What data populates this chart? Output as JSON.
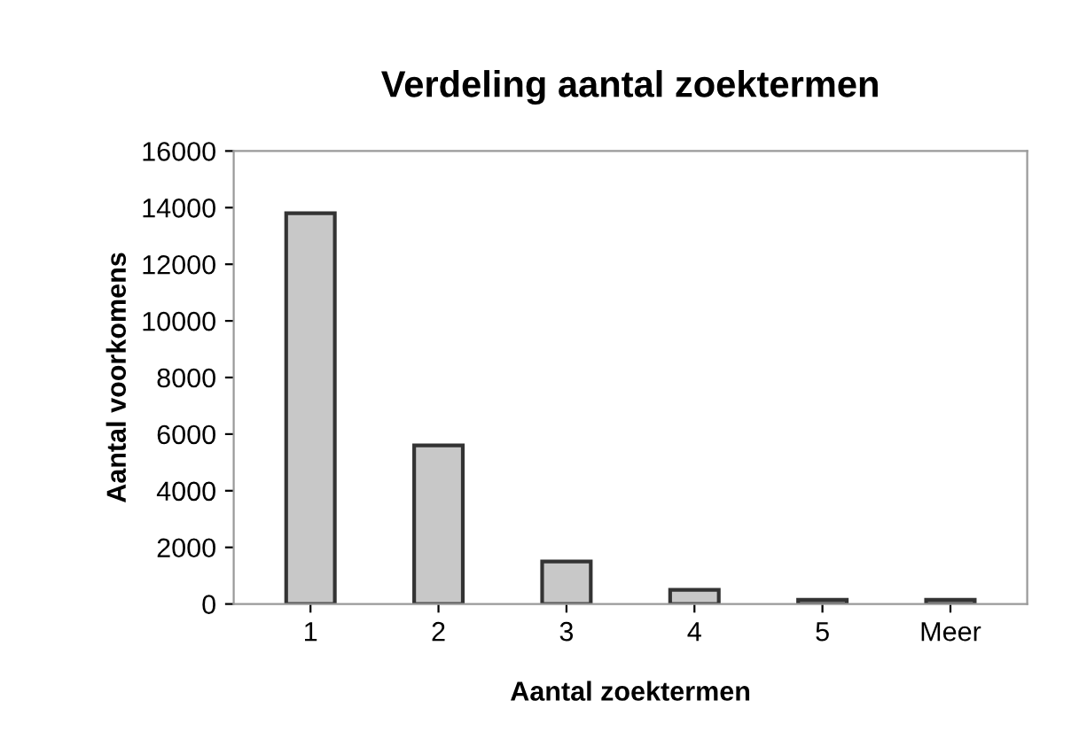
{
  "chart_data": {
    "type": "bar",
    "title": "Verdeling aantal zoektermen",
    "xlabel": "Aantal zoektermen",
    "ylabel": "Aantal voorkomens",
    "categories": [
      "1",
      "2",
      "3",
      "4",
      "5",
      "Meer"
    ],
    "values": [
      13800,
      5600,
      1500,
      500,
      150,
      150
    ],
    "color": "#c8c8c8",
    "ylim": [
      0,
      16000
    ],
    "yticks": [
      0,
      2000,
      4000,
      6000,
      8000,
      10000,
      12000,
      14000,
      16000
    ],
    "grid": false,
    "legend": false
  }
}
